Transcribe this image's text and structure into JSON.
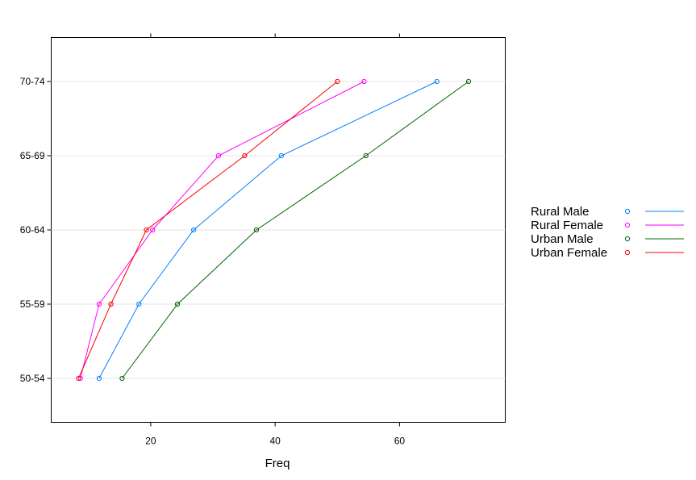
{
  "chart_data": {
    "type": "line",
    "title": "",
    "xlabel": "Freq",
    "ylabel": "",
    "categories": [
      "50-54",
      "55-59",
      "60-64",
      "65-69",
      "70-74"
    ],
    "xlim": [
      4,
      77
    ],
    "x_ticks": [
      20,
      40,
      60
    ],
    "x_tick_labels": [
      "20",
      "40",
      "60"
    ],
    "grid": "horizontal",
    "legend_position": "right",
    "series": [
      {
        "name": "Rural Male",
        "color": "#0080ff",
        "values": [
          11.7,
          18.1,
          26.9,
          41.0,
          66.0
        ]
      },
      {
        "name": "Rural Female",
        "color": "#ff00ff",
        "values": [
          8.7,
          11.7,
          20.3,
          30.9,
          54.3
        ]
      },
      {
        "name": "Urban Male",
        "color": "#006400",
        "values": [
          15.4,
          24.3,
          37.0,
          54.6,
          71.1
        ]
      },
      {
        "name": "Urban Female",
        "color": "#ff0000",
        "values": [
          8.4,
          13.6,
          19.3,
          35.1,
          50.0
        ]
      }
    ]
  }
}
